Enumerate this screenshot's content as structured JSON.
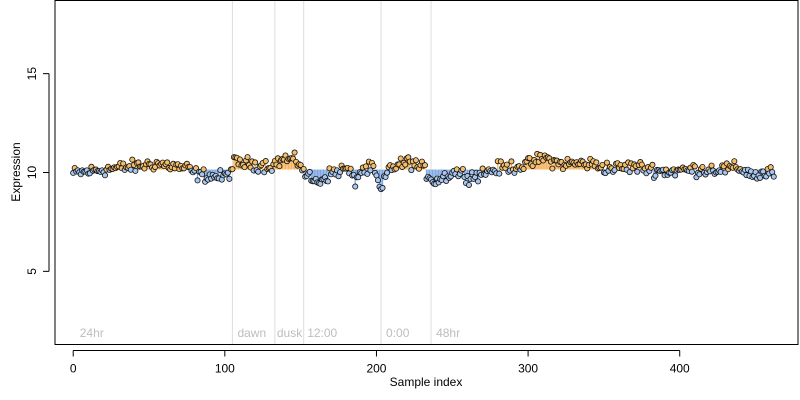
{
  "chart_data": {
    "type": "scatter",
    "xlabel": "Sample index",
    "ylabel": "Expression",
    "xlim": [
      -12,
      478
    ],
    "ylim": [
      1.3,
      18.7
    ],
    "x_ticks": [
      0,
      100,
      200,
      300,
      400
    ],
    "y_ticks": [
      5,
      10,
      15
    ],
    "baseline": 10.15,
    "grid": false,
    "colors": {
      "point_fill": "#a7c7f0",
      "point_fill_high": "#f4be6a",
      "point_stroke": "#111111",
      "bar_above": "#f4b25a",
      "bar_below": "#7ea6e0",
      "vline": "#dddddd",
      "annotation": "#bdbdbd"
    },
    "vlines": [
      105,
      133,
      152,
      203,
      236
    ],
    "annotations": [
      {
        "x": 3,
        "label": "24hr"
      },
      {
        "x": 107,
        "label": "dawn"
      },
      {
        "x": 133,
        "label": "dusk"
      },
      {
        "x": 153,
        "label": "12:00"
      },
      {
        "x": 205,
        "label": "0:00"
      },
      {
        "x": 238,
        "label": "48hr"
      }
    ],
    "profile": [
      [
        0,
        9.95
      ],
      [
        20,
        10.15
      ],
      [
        40,
        10.3
      ],
      [
        55,
        10.45
      ],
      [
        75,
        10.2
      ],
      [
        82,
        9.9
      ],
      [
        100,
        9.75
      ],
      [
        104,
        10.1
      ],
      [
        106,
        10.5
      ],
      [
        130,
        10.35
      ],
      [
        140,
        10.7
      ],
      [
        150,
        10.5
      ],
      [
        152,
        10.0
      ],
      [
        160,
        9.5
      ],
      [
        170,
        9.95
      ],
      [
        180,
        10.2
      ],
      [
        186,
        9.6
      ],
      [
        190,
        10.1
      ],
      [
        198,
        10.2
      ],
      [
        203,
        9.0
      ],
      [
        208,
        10.2
      ],
      [
        222,
        10.55
      ],
      [
        232,
        10.1
      ],
      [
        238,
        9.55
      ],
      [
        252,
        10.05
      ],
      [
        262,
        9.8
      ],
      [
        280,
        10.2
      ],
      [
        300,
        10.4
      ],
      [
        310,
        10.75
      ],
      [
        320,
        10.45
      ],
      [
        340,
        10.45
      ],
      [
        355,
        10.2
      ],
      [
        370,
        10.3
      ],
      [
        390,
        10.05
      ],
      [
        410,
        10.15
      ],
      [
        440,
        10.2
      ],
      [
        450,
        9.85
      ],
      [
        462,
        10.0
      ]
    ],
    "n_points": 463
  }
}
